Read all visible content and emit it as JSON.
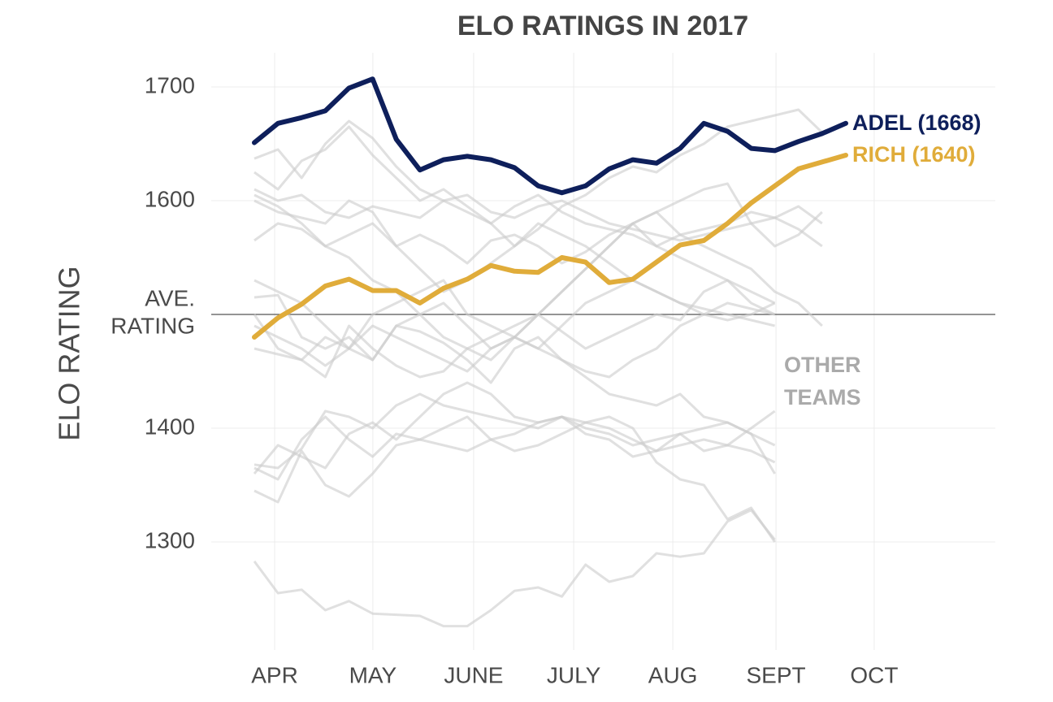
{
  "chart_data": {
    "type": "line",
    "title": "ELO RATINGS IN 2017",
    "y_label": "ELO RATING",
    "x": [
      1,
      2,
      3,
      4,
      5,
      6,
      7,
      8,
      9,
      10,
      11,
      12,
      13,
      14,
      15,
      16,
      17,
      18,
      19,
      20,
      21,
      22,
      23,
      24,
      25,
      26
    ],
    "xlim": [
      -0.82,
      32.32
    ],
    "xticks": [
      {
        "value": 1.86,
        "label": "APR"
      },
      {
        "value": 6.01,
        "label": "MAY"
      },
      {
        "value": 10.27,
        "label": "JUNE"
      },
      {
        "value": 14.5,
        "label": "JULY"
      },
      {
        "value": 18.69,
        "label": "AUG"
      },
      {
        "value": 23.05,
        "label": "SEPT"
      },
      {
        "value": 27.2,
        "label": "OCT"
      }
    ],
    "ylim": [
      1205,
      1730
    ],
    "yticks": [
      1300,
      1400,
      1600,
      1700
    ],
    "grid": true,
    "reference_line": {
      "value": 1500,
      "label": [
        "AVE.",
        "RATING"
      ]
    },
    "annotation": {
      "text": [
        "OTHER",
        "TEAMS"
      ],
      "color": "#aaaaaa"
    },
    "series": [
      {
        "color": "#cccccc",
        "values": [
          1637,
          1645,
          1620,
          1650,
          1670,
          1655,
          1630,
          1610,
          1600,
          1605,
          1590,
          1585,
          1595,
          1600,
          1590,
          1580,
          1575,
          1570,
          1565,
          1570,
          1575,
          1580,
          1585,
          1575,
          1560,
          null
        ]
      },
      {
        "color": "#cccccc",
        "values": [
          1625,
          1610,
          1635,
          1645,
          1665,
          1640,
          1620,
          1600,
          1610,
          1595,
          1580,
          1560,
          1575,
          1595,
          1605,
          1620,
          1630,
          1625,
          1640,
          1650,
          1665,
          1670,
          1675,
          1680,
          1660,
          null
        ]
      },
      {
        "color": "#cccccc",
        "values": [
          1610,
          1600,
          1605,
          1590,
          1585,
          1595,
          1590,
          1585,
          1600,
          1590,
          1580,
          1595,
          1605,
          1590,
          1580,
          1575,
          1570,
          1560,
          1570,
          1575,
          1580,
          1590,
          1585,
          1595,
          1580,
          null
        ]
      },
      {
        "color": "#cccccc",
        "values": [
          1565,
          1580,
          1575,
          1560,
          1570,
          1580,
          1560,
          1570,
          1560,
          1545,
          1565,
          1570,
          1560,
          1545,
          1555,
          1570,
          1580,
          1560,
          1550,
          1540,
          1530,
          1520,
          1510,
          null,
          null,
          null
        ]
      },
      {
        "color": "#cccccc",
        "values": [
          1530,
          1520,
          1510,
          1490,
          1470,
          1500,
          1510,
          1520,
          1530,
          1500,
          1490,
          1480,
          1470,
          1490,
          1510,
          1520,
          1530,
          1520,
          1510,
          1505,
          1500,
          1495,
          1490,
          null,
          null,
          null
        ]
      },
      {
        "color": "#cccccc",
        "values": [
          1515,
          1517,
          1480,
          1470,
          1480,
          1460,
          1490,
          1500,
          1510,
          1490,
          1470,
          1480,
          1500,
          1520,
          1540,
          1560,
          1580,
          1590,
          1570,
          1560,
          1550,
          1540,
          1520,
          1510,
          1490,
          null
        ]
      },
      {
        "color": "#cccccc",
        "values": [
          1490,
          1480,
          1470,
          1455,
          1470,
          1490,
          1480,
          1470,
          1460,
          1450,
          1470,
          1480,
          1470,
          1460,
          1450,
          1445,
          1460,
          1470,
          1490,
          1500,
          1510,
          1505,
          1500,
          null,
          null,
          null
        ]
      },
      {
        "color": "#cccccc",
        "values": [
          1470,
          1465,
          1460,
          1480,
          1470,
          1460,
          1490,
          1485,
          1475,
          1460,
          1440,
          1470,
          1480,
          1460,
          1445,
          1430,
          1425,
          1420,
          1430,
          1410,
          1405,
          1395,
          1385,
          null,
          null,
          null
        ]
      },
      {
        "color": "#cccccc",
        "values": [
          1500,
          1470,
          1460,
          1445,
          1490,
          1470,
          1455,
          1445,
          1450,
          1470,
          1480,
          1490,
          1500,
          1485,
          1470,
          1480,
          1490,
          1500,
          1495,
          1520,
          1530,
          1510,
          1500,
          null,
          null,
          null
        ]
      },
      {
        "color": "#cccccc",
        "values": [
          1368,
          1365,
          1382,
          1415,
          1410,
          1400,
          1420,
          1430,
          1420,
          1415,
          1410,
          1405,
          1400,
          1410,
          1405,
          1400,
          1390,
          1380,
          1385,
          1390,
          1385,
          1380,
          1370,
          null,
          null,
          null
        ]
      },
      {
        "color": "#cccccc",
        "values": [
          1360,
          1385,
          1375,
          1365,
          1395,
          1405,
          1390,
          1410,
          1430,
          1440,
          1430,
          1410,
          1405,
          1410,
          1400,
          1395,
          1385,
          1390,
          1395,
          1380,
          1385,
          1400,
          1415,
          null,
          null,
          null
        ]
      },
      {
        "color": "#cccccc",
        "values": [
          1345,
          1335,
          1380,
          1350,
          1340,
          1360,
          1385,
          1390,
          1385,
          1380,
          1390,
          1395,
          1405,
          1410,
          1395,
          1390,
          1375,
          1380,
          1395,
          1400,
          1405,
          1395,
          1360,
          null,
          null,
          null
        ]
      },
      {
        "color": "#cccccc",
        "values": [
          1365,
          1355,
          1390,
          1410,
          1390,
          1375,
          1395,
          1390,
          1400,
          1410,
          1390,
          1380,
          1385,
          1395,
          1405,
          1410,
          1400,
          1370,
          1355,
          1350,
          1320,
          1330,
          1300,
          null,
          null,
          null
        ]
      },
      {
        "color": "#cccccc",
        "values": [
          1283,
          1255,
          1258,
          1240,
          1248,
          1237,
          1236,
          1235,
          1226,
          1226,
          1240,
          1257,
          1260,
          1252,
          1280,
          1265,
          1270,
          1290,
          1287,
          1290,
          1318,
          1328,
          1302,
          null,
          null,
          null
        ]
      },
      {
        "color": "#cccccc",
        "values": [
          1600,
          1590,
          1585,
          1580,
          1600,
          1590,
          1560,
          1540,
          1520,
          1530,
          1545,
          1560,
          1580,
          1570,
          1560,
          1545,
          1530,
          1520,
          1510,
          1500,
          1495,
          1500,
          1510,
          null,
          null,
          null
        ]
      },
      {
        "color": "#cccccc",
        "values": [
          1605,
          1595,
          1580,
          1560,
          1550,
          1530,
          1520,
          1500,
          1480,
          1470,
          1460,
          1480,
          1500,
          1520,
          1540,
          1560,
          1580,
          1590,
          1600,
          1610,
          1615,
          1580,
          1560,
          1570,
          1590,
          null
        ]
      },
      {
        "name": "ADEL (1668)",
        "color": "#0e1f5b",
        "values": [
          1651,
          1668,
          1673,
          1679,
          1699,
          1707,
          1654,
          1627,
          1636,
          1639,
          1636,
          1629,
          1613,
          1607,
          1613,
          1628,
          1636,
          1633,
          1646,
          1668,
          1661,
          1646,
          1644,
          1652,
          1659,
          1668
        ]
      },
      {
        "name": "RICH (1640)",
        "color": "#e0ac3a",
        "values": [
          1480,
          1497,
          1509,
          1525,
          1531,
          1521,
          1521,
          1510,
          1523,
          1531,
          1543,
          1538,
          1537,
          1550,
          1546,
          1528,
          1531,
          1546,
          1561,
          1565,
          1580,
          1598,
          1613,
          1628,
          1634,
          1640
        ]
      }
    ]
  }
}
